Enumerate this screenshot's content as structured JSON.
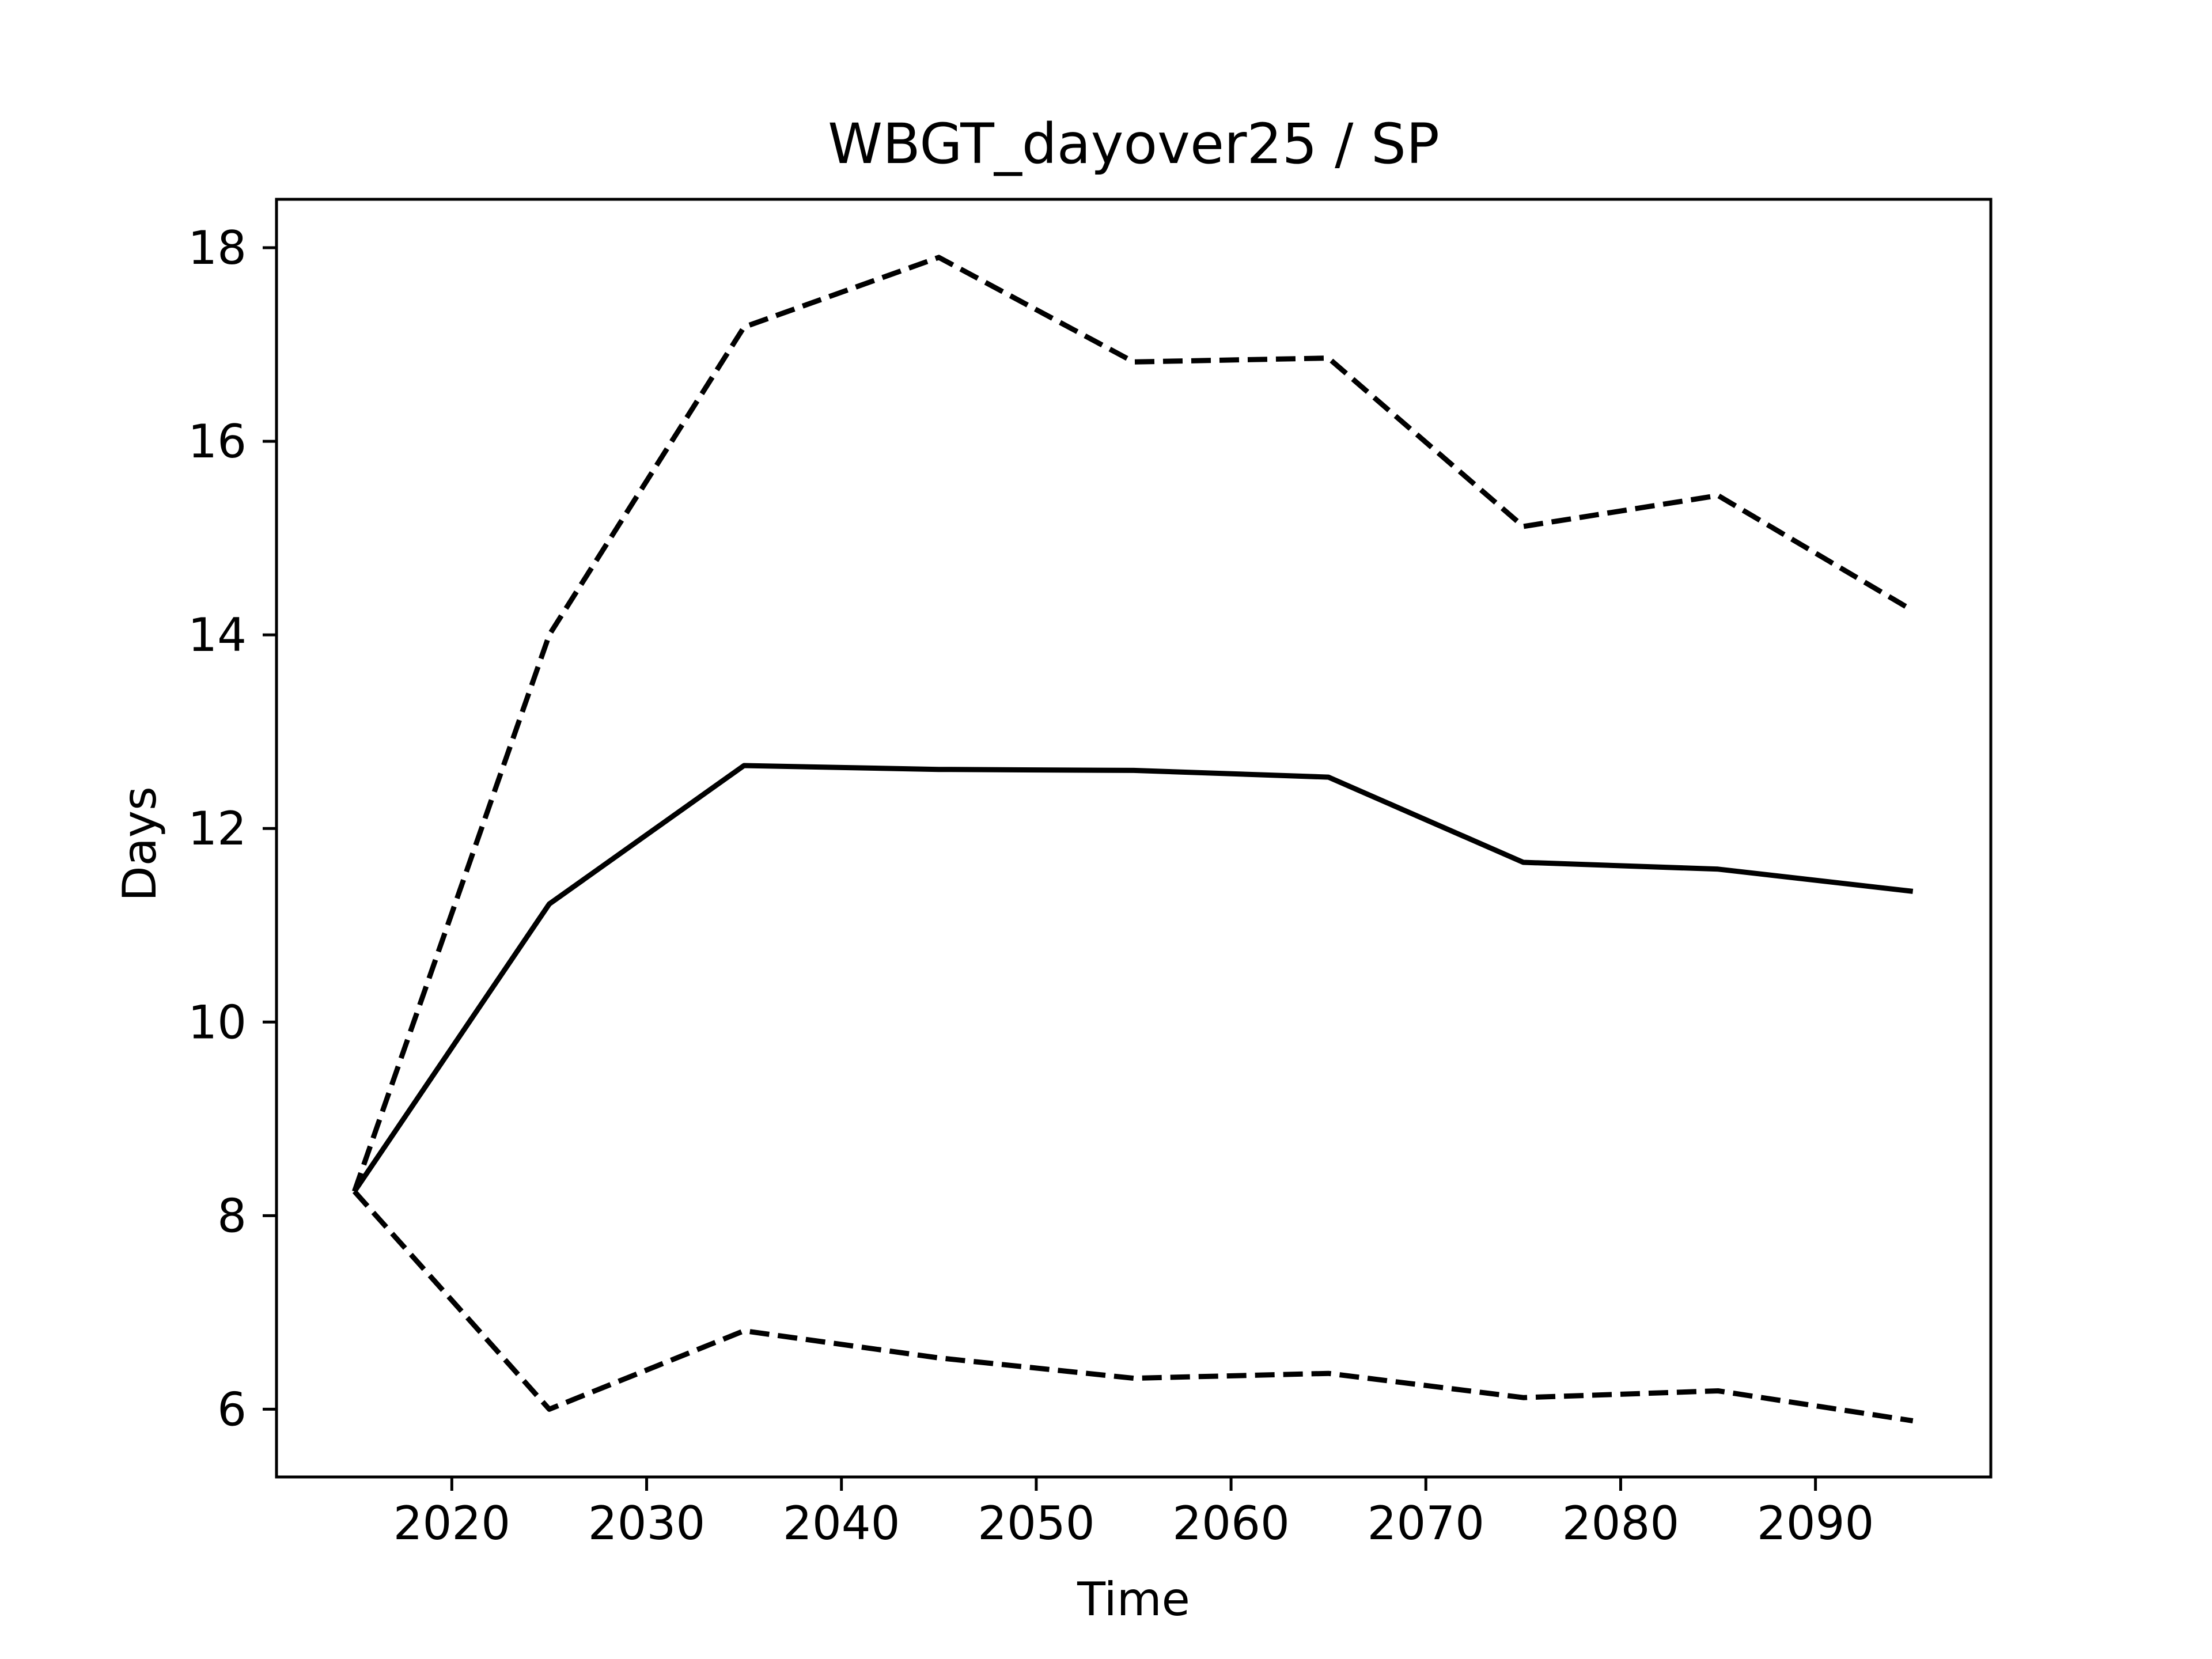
{
  "chart_data": {
    "type": "line",
    "title": "WBGT_dayover25 / SP",
    "xlabel": "Time",
    "ylabel": "Days",
    "xlim": [
      2011,
      2099
    ],
    "ylim": [
      5.3,
      18.5
    ],
    "xticks": [
      2020,
      2030,
      2040,
      2050,
      2060,
      2070,
      2080,
      2090
    ],
    "yticks": [
      6,
      8,
      10,
      12,
      14,
      16,
      18
    ],
    "grid": false,
    "legend": "none",
    "x": [
      2015,
      2025,
      2035,
      2045,
      2055,
      2065,
      2075,
      2085,
      2095
    ],
    "series": [
      {
        "style": "solid",
        "values": [
          8.25,
          11.22,
          12.65,
          12.61,
          12.6,
          12.53,
          11.65,
          11.58,
          11.35
        ]
      },
      {
        "style": "dashed",
        "values": [
          8.25,
          14.0,
          17.18,
          17.9,
          16.82,
          16.86,
          15.12,
          15.44,
          14.25
        ]
      },
      {
        "style": "dashed",
        "values": [
          8.25,
          6.0,
          6.81,
          6.53,
          6.32,
          6.37,
          6.12,
          6.19,
          5.88
        ]
      }
    ],
    "colors": {
      "line": "#000000",
      "axes": "#000000",
      "background": "#ffffff"
    }
  }
}
